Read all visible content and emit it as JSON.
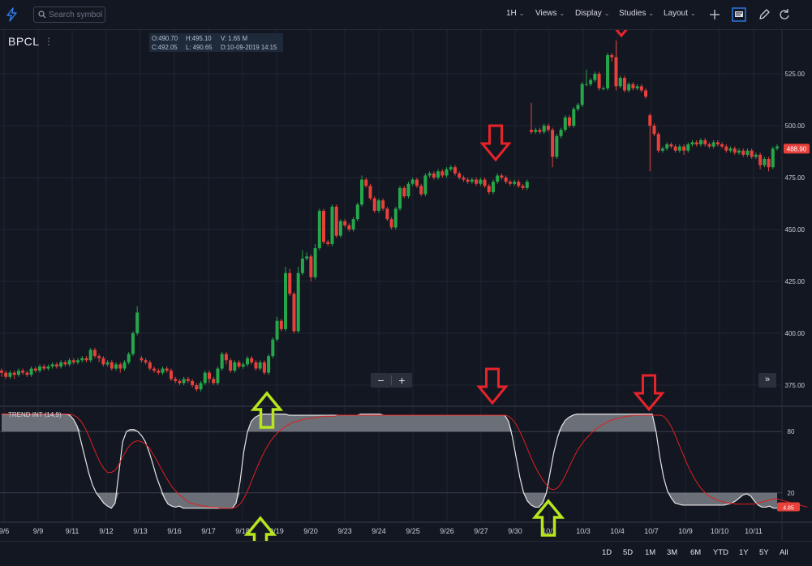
{
  "toolbar": {
    "search_placeholder": "Search symbol",
    "interval": "1H",
    "views": "Views",
    "display": "Display",
    "studies": "Studies",
    "layout": "Layout"
  },
  "symbol": "BPCL",
  "ohlc": {
    "open": "O:490.70",
    "high": "H:495.10",
    "volume": "V: 1.65 M",
    "close": "C:492.05",
    "low": "L: 490.65",
    "date": "D:10-09-2019 14:15"
  },
  "indicator": {
    "label": "TREND INT (14,9)",
    "last_value": "4.85"
  },
  "range_buttons": [
    "1D",
    "5D",
    "1M",
    "3M",
    "6M",
    "YTD",
    "1Y",
    "5Y",
    "All"
  ],
  "colors": {
    "up": "#26a64a",
    "down": "#e8413b",
    "signal": "#e01f1f",
    "arrow_red": "#e8232a",
    "arrow_green": "#b8e61e",
    "background": "#131722"
  },
  "chart_data": {
    "type": "candlestick",
    "price_axis": {
      "ticks": [
        375,
        400,
        425,
        450,
        475,
        500,
        525
      ],
      "tick_labels": [
        "375.00",
        "400.00",
        "425.00",
        "450.00",
        "475.00",
        "500.00",
        "525.00"
      ],
      "ylim": [
        370,
        545
      ]
    },
    "last_price_label": "488.90",
    "x_tick_labels": [
      "9/6",
      "9/9",
      "9/11",
      "9/12",
      "9/13",
      "9/16",
      "9/17",
      "9/18",
      "9/19",
      "9/20",
      "9/23",
      "9/24",
      "9/25",
      "9/26",
      "9/27",
      "9/30",
      "10/1",
      "10/3",
      "10/4",
      "10/7",
      "10/9",
      "10/10",
      "10/11"
    ],
    "candles": [
      [
        382,
        381,
        383,
        379
      ],
      [
        381,
        379,
        382,
        378
      ],
      [
        379,
        381,
        382,
        378
      ],
      [
        381,
        380,
        382,
        378
      ],
      [
        380,
        382,
        383,
        379
      ],
      [
        382,
        381,
        383,
        380
      ],
      [
        381,
        380,
        382,
        379
      ],
      [
        380,
        383,
        384,
        379
      ],
      [
        383,
        382,
        384,
        381
      ],
      [
        382,
        384,
        385,
        381
      ],
      [
        384,
        383,
        385,
        382
      ],
      [
        383,
        384,
        385,
        382
      ],
      [
        384,
        385,
        386,
        383
      ],
      [
        385,
        384,
        386,
        383
      ],
      [
        384,
        386,
        387,
        383
      ],
      [
        386,
        385,
        387,
        384
      ],
      [
        385,
        387,
        388,
        384
      ],
      [
        387,
        386,
        388,
        385
      ],
      [
        386,
        387,
        388,
        385
      ],
      [
        387,
        388,
        389,
        386
      ],
      [
        388,
        387,
        389,
        386
      ],
      [
        387,
        392,
        393,
        386
      ],
      [
        392,
        389,
        393,
        388
      ],
      [
        389,
        388,
        390,
        386
      ],
      [
        388,
        385,
        389,
        384
      ],
      [
        385,
        386,
        387,
        384
      ],
      [
        386,
        383,
        387,
        382
      ],
      [
        383,
        385,
        386,
        382
      ],
      [
        385,
        383,
        386,
        381
      ],
      [
        383,
        386,
        387,
        382
      ],
      [
        386,
        390,
        391,
        385
      ],
      [
        390,
        400,
        401,
        389
      ],
      [
        400,
        410,
        413,
        399
      ],
      [
        388,
        387,
        389,
        386
      ],
      [
        387,
        386,
        388,
        385
      ],
      [
        386,
        383,
        387,
        382
      ],
      [
        383,
        382,
        384,
        381
      ],
      [
        382,
        381,
        383,
        380
      ],
      [
        381,
        383,
        384,
        380
      ],
      [
        383,
        382,
        384,
        381
      ],
      [
        382,
        378,
        383,
        377
      ],
      [
        378,
        377,
        379,
        376
      ],
      [
        377,
        376,
        378,
        375
      ],
      [
        376,
        378,
        379,
        375
      ],
      [
        378,
        377,
        379,
        376
      ],
      [
        377,
        375,
        378,
        374
      ],
      [
        375,
        373,
        376,
        372
      ],
      [
        373,
        376,
        377,
        372
      ],
      [
        376,
        381,
        382,
        375
      ],
      [
        381,
        378,
        382,
        376
      ],
      [
        378,
        376,
        379,
        375
      ],
      [
        376,
        383,
        384,
        375
      ],
      [
        383,
        390,
        391,
        382
      ],
      [
        390,
        387,
        391,
        385
      ],
      [
        387,
        382,
        388,
        381
      ],
      [
        382,
        386,
        387,
        381
      ],
      [
        386,
        384,
        387,
        383
      ],
      [
        384,
        385,
        386,
        383
      ],
      [
        385,
        388,
        389,
        384
      ],
      [
        388,
        386,
        389,
        385
      ],
      [
        386,
        383,
        387,
        382
      ],
      [
        383,
        386,
        387,
        382
      ],
      [
        386,
        381,
        387,
        380
      ],
      [
        381,
        389,
        390,
        380
      ],
      [
        389,
        397,
        398,
        388
      ],
      [
        397,
        406,
        408,
        396
      ],
      [
        406,
        402,
        407,
        401
      ],
      [
        402,
        429,
        432,
        401
      ],
      [
        429,
        419,
        431,
        418
      ],
      [
        419,
        401,
        420,
        400
      ],
      [
        401,
        429,
        432,
        400
      ],
      [
        429,
        436,
        440,
        428
      ],
      [
        436,
        437,
        439,
        435
      ],
      [
        437,
        427,
        438,
        425
      ],
      [
        427,
        441,
        443,
        426
      ],
      [
        441,
        459,
        460,
        440
      ],
      [
        459,
        444,
        460,
        443
      ],
      [
        444,
        443,
        445,
        442
      ],
      [
        443,
        461,
        462,
        442
      ],
      [
        461,
        447,
        462,
        446
      ],
      [
        447,
        454,
        455,
        446
      ],
      [
        454,
        452,
        455,
        451
      ],
      [
        452,
        450,
        453,
        449
      ],
      [
        450,
        455,
        456,
        449
      ],
      [
        455,
        462,
        463,
        454
      ],
      [
        462,
        474,
        476,
        461
      ],
      [
        474,
        471,
        475,
        470
      ],
      [
        471,
        465,
        472,
        464
      ],
      [
        465,
        459,
        466,
        458
      ],
      [
        459,
        464,
        465,
        458
      ],
      [
        464,
        460,
        465,
        459
      ],
      [
        460,
        455,
        461,
        454
      ],
      [
        455,
        451,
        456,
        450
      ],
      [
        451,
        460,
        461,
        450
      ],
      [
        460,
        470,
        471,
        459
      ],
      [
        470,
        466,
        471,
        465
      ],
      [
        466,
        472,
        473,
        465
      ],
      [
        472,
        474,
        475,
        471
      ],
      [
        474,
        471,
        475,
        470
      ],
      [
        471,
        467,
        472,
        466
      ],
      [
        467,
        476,
        477,
        466
      ],
      [
        476,
        477,
        478,
        475
      ],
      [
        477,
        475,
        478,
        474
      ],
      [
        475,
        478,
        479,
        474
      ],
      [
        478,
        476,
        479,
        475
      ],
      [
        476,
        479,
        480,
        475
      ],
      [
        479,
        480,
        481,
        478
      ],
      [
        480,
        477,
        481,
        476
      ],
      [
        477,
        475,
        478,
        474
      ],
      [
        475,
        474,
        476,
        473
      ],
      [
        474,
        473,
        475,
        472
      ],
      [
        473,
        474,
        475,
        472
      ],
      [
        474,
        472,
        475,
        471
      ],
      [
        472,
        474,
        475,
        471
      ],
      [
        474,
        471,
        475,
        470
      ],
      [
        471,
        468,
        472,
        467
      ],
      [
        468,
        473,
        474,
        467
      ],
      [
        473,
        476,
        477,
        472
      ],
      [
        476,
        475,
        477,
        474
      ],
      [
        475,
        473,
        476,
        472
      ],
      [
        473,
        472,
        474,
        471
      ],
      [
        472,
        473,
        474,
        471
      ],
      [
        473,
        471,
        474,
        470
      ],
      [
        471,
        470,
        472,
        469
      ],
      [
        470,
        473,
        474,
        469
      ],
      [
        498,
        497,
        511,
        496
      ],
      [
        497,
        498,
        499,
        496
      ],
      [
        498,
        497,
        499,
        496
      ],
      [
        497,
        500,
        501,
        496
      ],
      [
        500,
        498,
        501,
        497
      ],
      [
        498,
        485,
        499,
        480
      ],
      [
        485,
        495,
        496,
        484
      ],
      [
        495,
        498,
        499,
        494
      ],
      [
        498,
        504,
        505,
        497
      ],
      [
        504,
        500,
        505,
        499
      ],
      [
        500,
        508,
        509,
        499
      ],
      [
        508,
        510,
        511,
        507
      ],
      [
        510,
        520,
        521,
        509
      ],
      [
        520,
        520,
        527,
        519
      ],
      [
        520,
        522,
        523,
        519
      ],
      [
        522,
        525,
        526,
        521
      ],
      [
        525,
        518,
        526,
        517
      ],
      [
        518,
        518,
        519,
        517
      ],
      [
        518,
        534,
        535,
        517
      ],
      [
        534,
        533,
        535,
        531
      ],
      [
        533,
        519,
        541,
        517
      ],
      [
        519,
        523,
        524,
        518
      ],
      [
        523,
        517,
        524,
        516
      ],
      [
        517,
        520,
        521,
        516
      ],
      [
        520,
        518,
        521,
        517
      ],
      [
        518,
        519,
        520,
        517
      ],
      [
        519,
        517,
        520,
        516
      ],
      [
        517,
        514,
        518,
        513
      ],
      [
        505,
        500,
        506,
        478
      ],
      [
        500,
        496,
        501,
        495
      ],
      [
        496,
        488,
        497,
        487
      ],
      [
        488,
        489,
        490,
        487
      ],
      [
        489,
        491,
        492,
        488
      ],
      [
        491,
        490,
        492,
        489
      ],
      [
        490,
        488,
        491,
        487
      ],
      [
        488,
        490,
        491,
        487
      ],
      [
        490,
        488,
        491,
        486
      ],
      [
        488,
        491,
        492,
        487
      ],
      [
        491,
        492,
        493,
        490
      ],
      [
        492,
        491,
        493,
        490
      ],
      [
        491,
        493,
        494,
        490
      ],
      [
        493,
        491,
        494,
        490
      ],
      [
        491,
        490,
        492,
        489
      ],
      [
        490,
        492,
        493,
        489
      ],
      [
        492,
        491,
        493,
        490
      ],
      [
        491,
        490,
        492,
        489
      ],
      [
        490,
        488,
        491,
        487
      ],
      [
        488,
        489,
        490,
        487
      ],
      [
        489,
        487,
        490,
        486
      ],
      [
        487,
        488,
        489,
        486
      ],
      [
        488,
        486,
        489,
        485
      ],
      [
        486,
        488,
        489,
        485
      ],
      [
        488,
        485,
        489,
        484
      ],
      [
        485,
        486,
        487,
        484
      ],
      [
        486,
        481,
        487,
        479
      ],
      [
        481,
        484,
        485,
        480
      ],
      [
        484,
        480,
        485,
        478
      ],
      [
        480,
        489,
        490,
        479
      ],
      [
        489,
        490,
        491,
        488
      ]
    ],
    "indicator": {
      "name": "TREND INT (14,9)",
      "ticks": [
        20,
        80
      ],
      "ylim": [
        0,
        100
      ],
      "trend_line": [
        97,
        97,
        97,
        97,
        97,
        97,
        97,
        97,
        97,
        97,
        97,
        97,
        97,
        97,
        97,
        97,
        97,
        97,
        96,
        92,
        85,
        70,
        55,
        40,
        28,
        20,
        15,
        10,
        7,
        5,
        10,
        40,
        70,
        80,
        82,
        82,
        80,
        76,
        70,
        60,
        48,
        35,
        25,
        15,
        9,
        7,
        6,
        7,
        5,
        5,
        5,
        5,
        5,
        5,
        5,
        5,
        5,
        5,
        5,
        5,
        5,
        5,
        10,
        30,
        60,
        80,
        90,
        94,
        96,
        97,
        97,
        97,
        97,
        97,
        97,
        97,
        96,
        96,
        96,
        96,
        96,
        96,
        96,
        96,
        96,
        96,
        96,
        96,
        96,
        96,
        96,
        96,
        96,
        96,
        96,
        97,
        97,
        97,
        97,
        97,
        97,
        96,
        96,
        96,
        96,
        96,
        96,
        96,
        96,
        96,
        96,
        96,
        96,
        96,
        96,
        96,
        96,
        96,
        96,
        96,
        96,
        96,
        96,
        96,
        96,
        96,
        96,
        96,
        96,
        96,
        96,
        96,
        96,
        96,
        90,
        75,
        55,
        35,
        20,
        12,
        8,
        6,
        6,
        10,
        20,
        40,
        60,
        75,
        85,
        91,
        94,
        96,
        97,
        97,
        97,
        97,
        97,
        97,
        97,
        97,
        97,
        97,
        97,
        97,
        97,
        97,
        97,
        97,
        97,
        97,
        97,
        97,
        97,
        80,
        55,
        35,
        22,
        15,
        10,
        9,
        8,
        8,
        8,
        8,
        8,
        8,
        8,
        8,
        8,
        8,
        8,
        8,
        9,
        10,
        12,
        15,
        18,
        19,
        17,
        12,
        8,
        6,
        6,
        7,
        5,
        5
      ],
      "signal_line": [
        97,
        97,
        97,
        97,
        97,
        97,
        97,
        97,
        97,
        97,
        97,
        97,
        97,
        97,
        97,
        97,
        97,
        97,
        97,
        96,
        94,
        90,
        84,
        76,
        67,
        58,
        50,
        44,
        40,
        40,
        42,
        48,
        55,
        62,
        67,
        70,
        71,
        70,
        68,
        64,
        58,
        52,
        45,
        38,
        32,
        26,
        22,
        18,
        15,
        12,
        10,
        9,
        8,
        7,
        7,
        6,
        6,
        6,
        5,
        5,
        5,
        5,
        6,
        9,
        14,
        22,
        31,
        40,
        49,
        57,
        64,
        70,
        75,
        79,
        82,
        85,
        87,
        89,
        90,
        91,
        92,
        93,
        93,
        94,
        94,
        95,
        95,
        95,
        95,
        96,
        96,
        96,
        96,
        96,
        96,
        96,
        96,
        96,
        96,
        96,
        96,
        96,
        96,
        96,
        96,
        96,
        96,
        96,
        96,
        96,
        96,
        96,
        96,
        96,
        96,
        96,
        96,
        96,
        96,
        96,
        96,
        96,
        96,
        96,
        96,
        96,
        96,
        96,
        96,
        96,
        96,
        96,
        96,
        96,
        95,
        92,
        87,
        80,
        72,
        63,
        54,
        46,
        39,
        33,
        28,
        24,
        23,
        25,
        30,
        37,
        45,
        53,
        60,
        66,
        71,
        75,
        79,
        82,
        85,
        87,
        89,
        91,
        92,
        93,
        94,
        95,
        95,
        96,
        96,
        96,
        96,
        96,
        96,
        96,
        96,
        95,
        91,
        85,
        77,
        68,
        59,
        50,
        42,
        35,
        29,
        24,
        20,
        17,
        15,
        13,
        12,
        11,
        10,
        10,
        9,
        9,
        9,
        9,
        9,
        9,
        10,
        11,
        12,
        13,
        14,
        14,
        13,
        12,
        11,
        10,
        9,
        8,
        7,
        6
      ]
    },
    "annotations": [
      {
        "type": "arrow-down",
        "color": "red",
        "label": ""
      },
      {
        "type": "arrow-up",
        "color": "green",
        "label": ""
      }
    ]
  }
}
